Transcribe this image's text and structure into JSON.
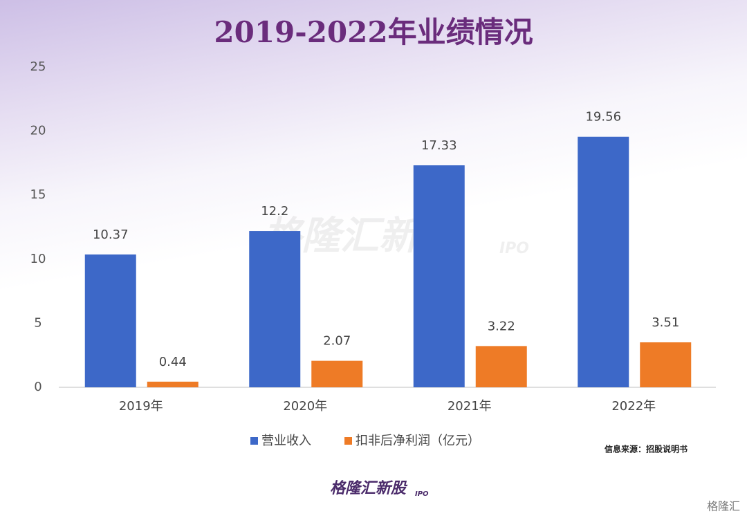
{
  "chart_data": {
    "type": "bar",
    "title": "2019-2022年业绩情况",
    "categories": [
      "2019年",
      "2020年",
      "2021年",
      "2022年"
    ],
    "series": [
      {
        "name": "营业收入",
        "color": "#3d68c8",
        "values": [
          10.37,
          12.2,
          17.33,
          19.56
        ]
      },
      {
        "name": "扣非后净利润（亿元）",
        "color": "#ee7b26",
        "values": [
          0.44,
          2.07,
          3.22,
          3.51
        ]
      }
    ],
    "ylim": [
      0,
      25
    ],
    "yticks": [
      0,
      5,
      10,
      15,
      20,
      25
    ],
    "grid": false,
    "legend": "bottom",
    "source": "信息来源：招股说明书",
    "watermark": "格隆汇新股",
    "watermark_sub": "IPO",
    "logo": "格隆汇新股",
    "logo_sub": "IPO",
    "corner": "格隆汇"
  }
}
